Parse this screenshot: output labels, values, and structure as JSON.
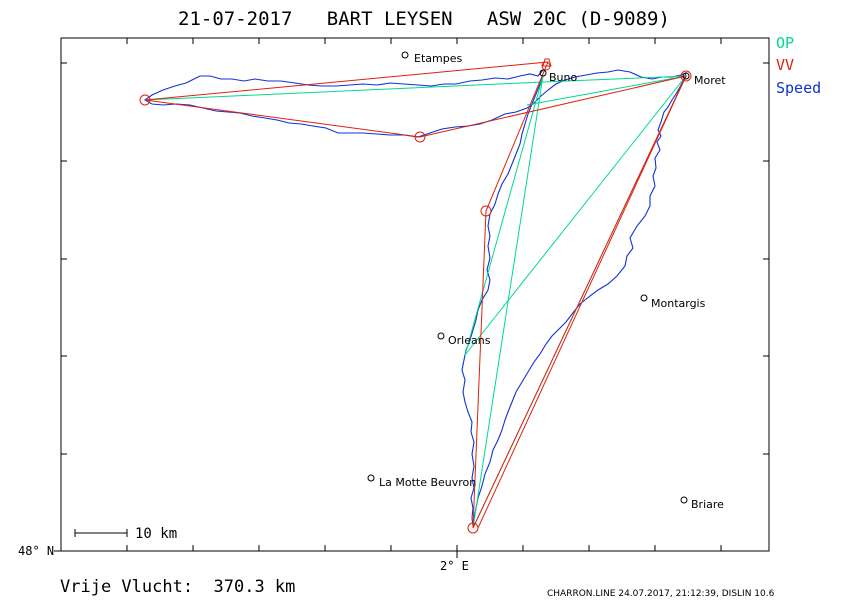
{
  "title": "21-07-2017   BART LEYSEN   ASW 20C (D-9089)",
  "legend": [
    {
      "label": "OP",
      "color": "#00d890"
    },
    {
      "label": "VV",
      "color": "#e02010"
    },
    {
      "label": "Speed",
      "color": "#1030d8"
    }
  ],
  "places": [
    {
      "name": "Etampes",
      "icon": "town-circle-icon"
    },
    {
      "name": "Buno",
      "icon": "town-circle-icon"
    },
    {
      "name": "Moret",
      "icon": "town-circle-icon"
    },
    {
      "name": "Montargis",
      "icon": "town-circle-icon"
    },
    {
      "name": "Orleans",
      "icon": "town-circle-icon"
    },
    {
      "name": "La Motte Beuvron",
      "icon": "town-circle-icon"
    },
    {
      "name": "Briare",
      "icon": "town-circle-icon"
    }
  ],
  "axes": {
    "lat_label": "48° N",
    "lon_label": "2° E"
  },
  "scale": {
    "label": "10 km"
  },
  "footer": {
    "distance": "Vrije Vlucht:  370.3 km",
    "source": "CHARRON.LINE 24.07.2017, 21:12:39, DISLIN 10.6"
  },
  "colors": {
    "op": "#00d890",
    "vv": "#e02010",
    "speed": "#1030d8",
    "frame": "#000000"
  }
}
